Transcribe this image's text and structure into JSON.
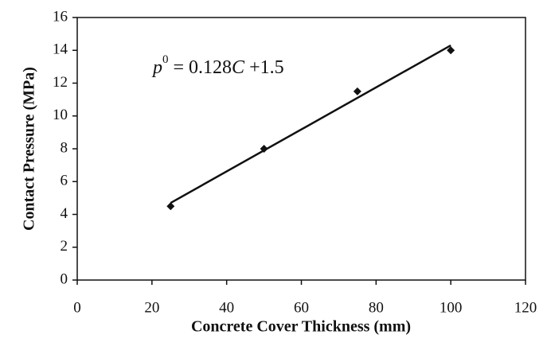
{
  "chart_data": {
    "type": "scatter",
    "x_label": "Concrete Cover Thickness (mm)",
    "y_label": "Contact Pressure (MPa)",
    "x": [
      25,
      50,
      75,
      100
    ],
    "values": [
      4.5,
      8,
      11.5,
      14
    ],
    "color": "#111111",
    "trendline": {
      "slope": 0.128,
      "intercept": 1.5
    },
    "equation": {
      "lhs": "p",
      "sup": "0",
      "mid": " = 0.128",
      "var": "C",
      "end": " +1.5"
    },
    "xlim": [
      0,
      120
    ],
    "xticks": [
      0,
      20,
      40,
      60,
      80,
      100,
      120
    ],
    "ylim": [
      0,
      16
    ],
    "yticks": [
      0,
      2,
      4,
      6,
      8,
      10,
      12,
      14,
      16
    ],
    "grid": false
  }
}
